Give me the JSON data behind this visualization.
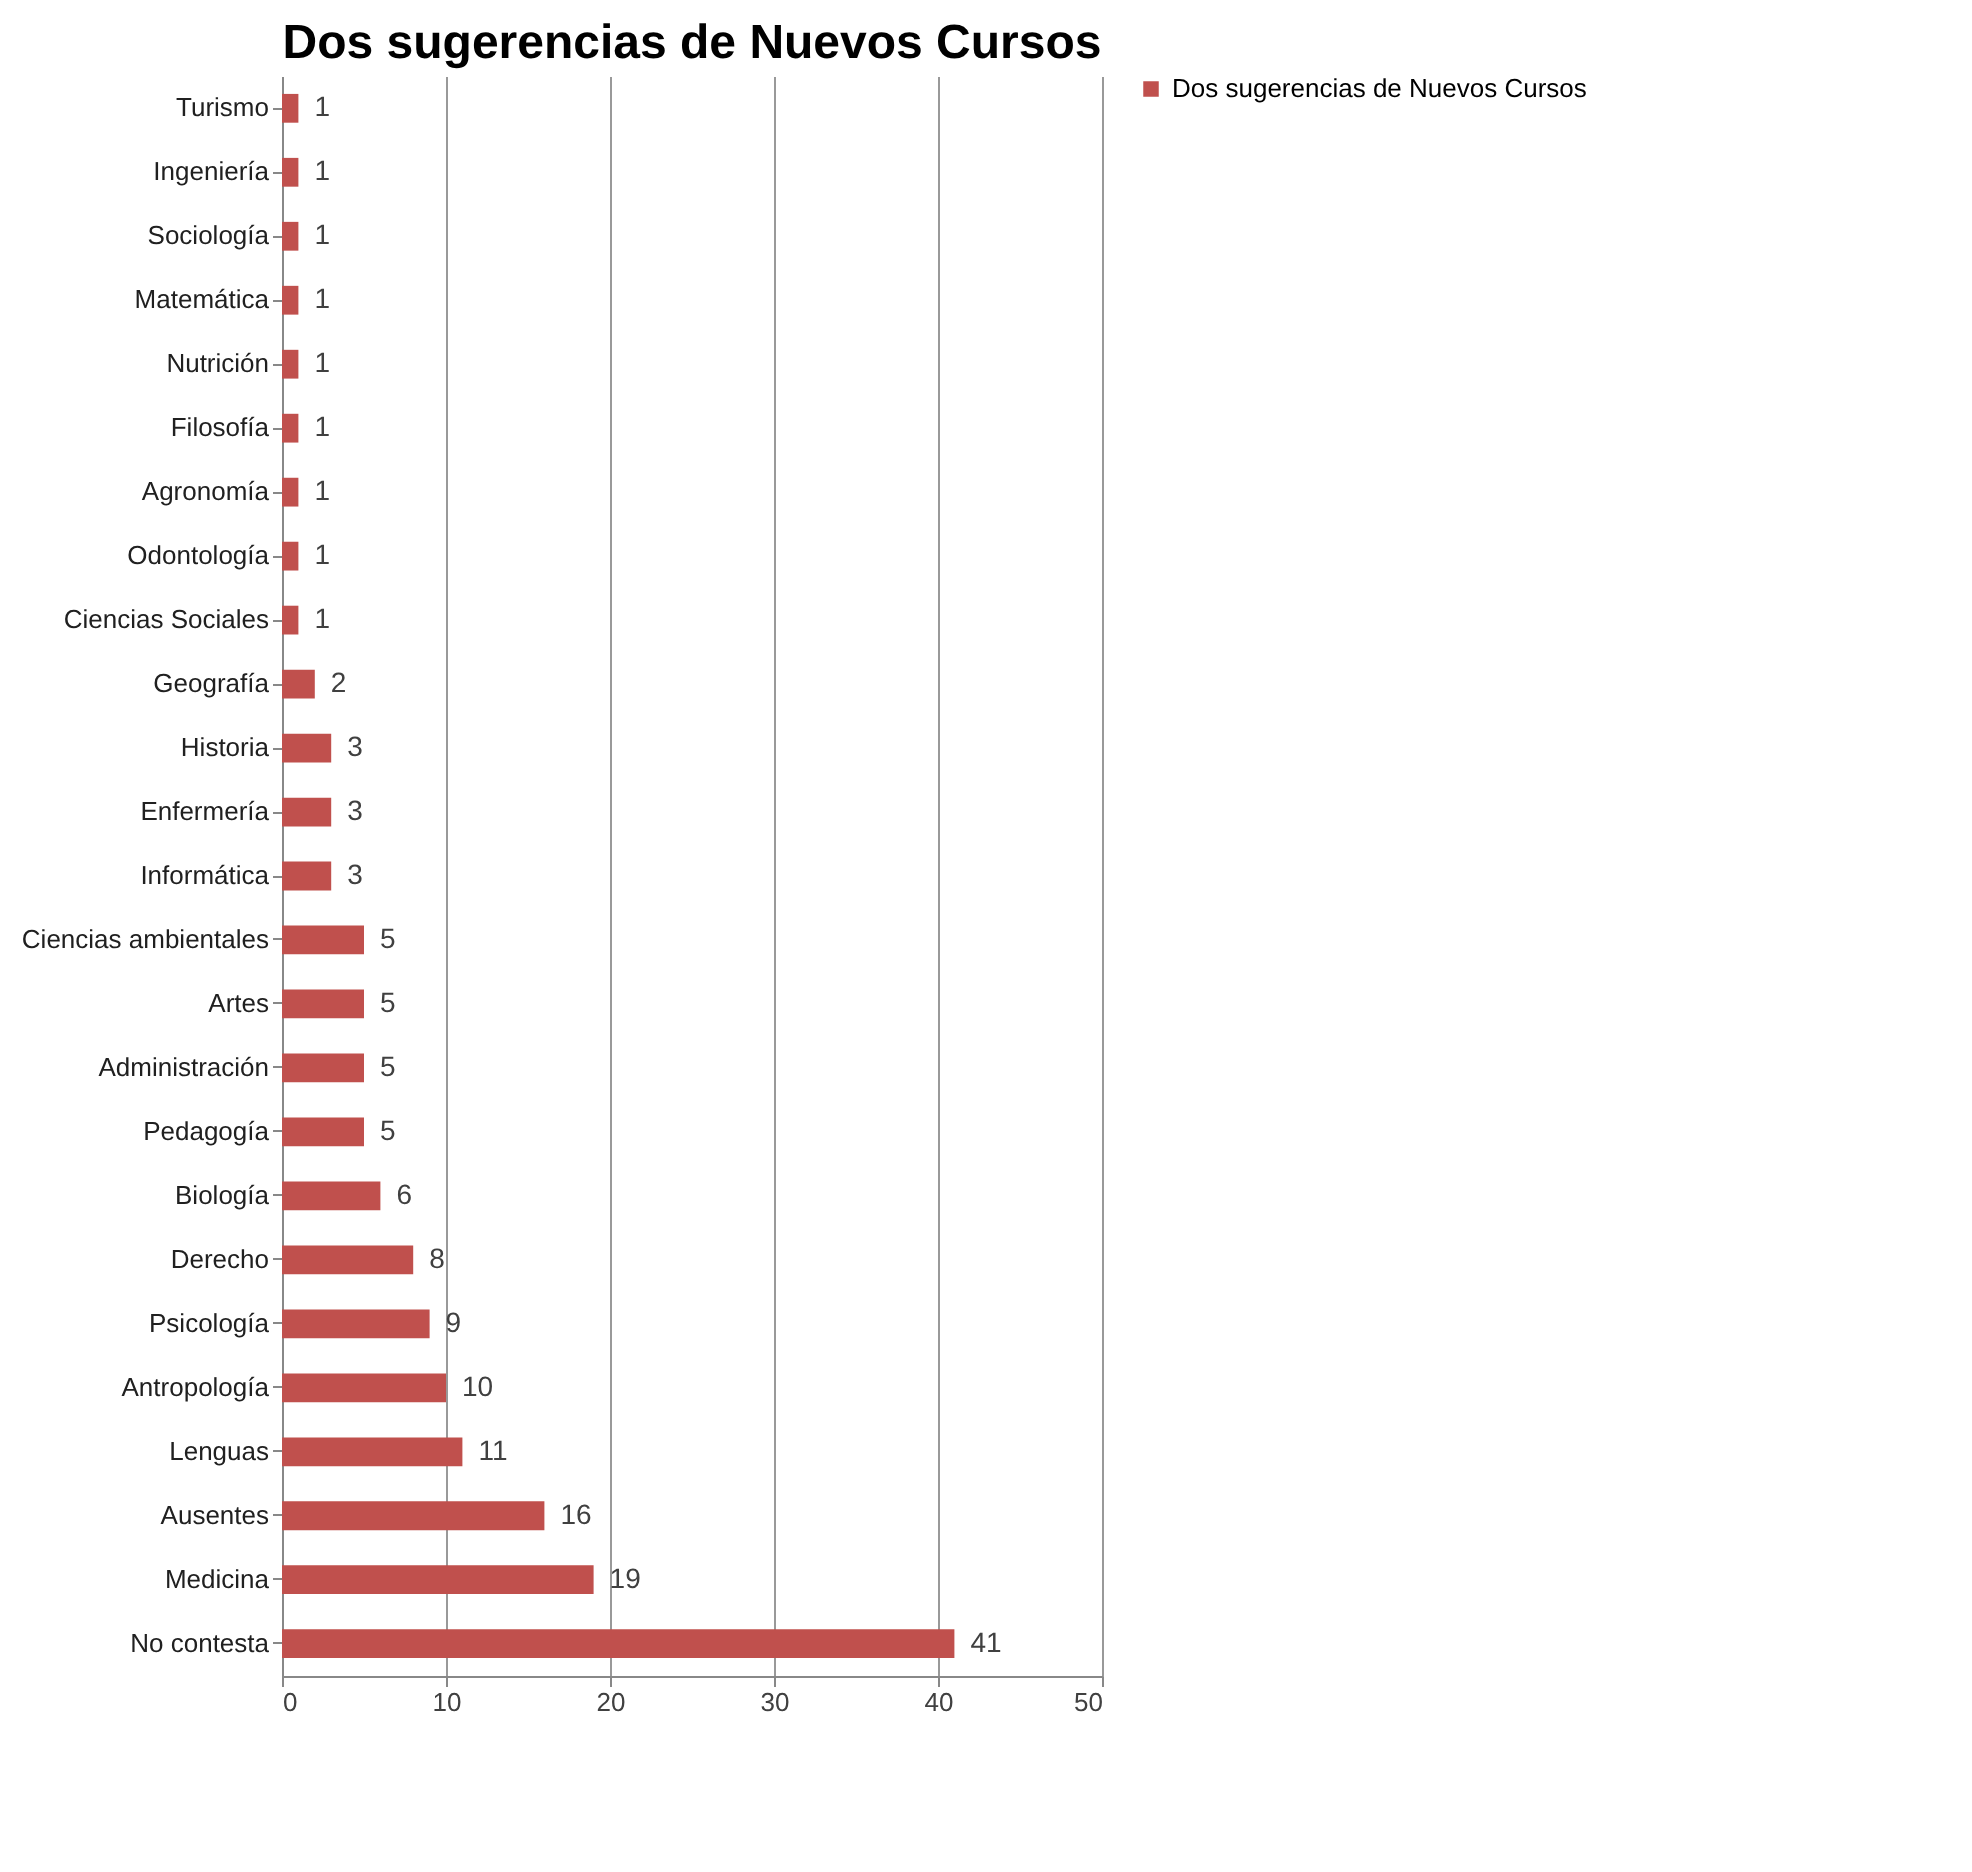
{
  "chart_data": {
    "type": "bar",
    "orientation": "horizontal",
    "title": "Dos sugerencias de Nuevos Cursos",
    "categories": [
      "Turismo",
      "Ingeniería",
      "Sociología",
      "Matemática",
      "Nutrición",
      "Filosofía",
      "Agronomía",
      "Odontología",
      "Ciencias Sociales",
      "Geografía",
      "Historia",
      "Enfermería",
      "Informática",
      "Ciencias ambientales",
      "Artes",
      "Administración",
      "Pedagogía",
      "Biología",
      "Derecho",
      "Psicología",
      "Antropología",
      "Lenguas",
      "Ausentes",
      "Medicina",
      "No contesta"
    ],
    "series": [
      {
        "name": "Dos sugerencias de Nuevos Cursos",
        "color": "#c0504d",
        "values": [
          1,
          1,
          1,
          1,
          1,
          1,
          1,
          1,
          1,
          2,
          3,
          3,
          3,
          5,
          5,
          5,
          5,
          6,
          8,
          9,
          10,
          11,
          16,
          19,
          41
        ]
      }
    ],
    "xlim": [
      0,
      50
    ],
    "xticks": [
      0,
      10,
      20,
      30,
      40,
      50
    ],
    "grid": "x",
    "legend": "right",
    "data_labels": true
  }
}
